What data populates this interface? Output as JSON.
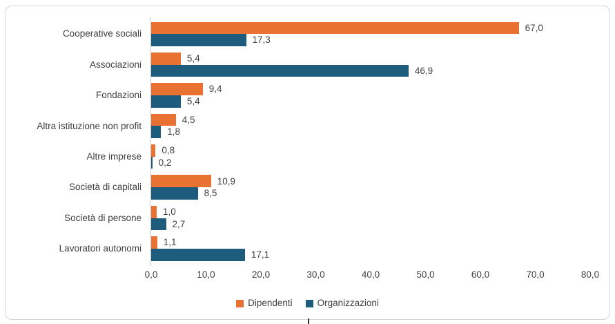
{
  "chart_data": {
    "type": "bar",
    "orientation": "horizontal",
    "title": "",
    "categories": [
      "Cooperative sociali",
      "Associazioni",
      "Fondazioni",
      "Altra istituzione non profit",
      "Altre imprese",
      "Società di capitali",
      "Società di persone",
      "Lavoratori autonomi"
    ],
    "series": [
      {
        "name": "Dipendenti",
        "color": "#E97132",
        "values": [
          67.0,
          5.4,
          9.4,
          4.5,
          0.8,
          10.9,
          1.0,
          1.1
        ],
        "value_labels": [
          "67,0",
          "5,4",
          "9,4",
          "4,5",
          "0,8",
          "10,9",
          "1,0",
          "1,1"
        ]
      },
      {
        "name": "Organizzazioni",
        "color": "#1D5C7D",
        "values": [
          17.3,
          46.9,
          5.4,
          1.8,
          0.2,
          8.5,
          2.7,
          17.1
        ],
        "value_labels": [
          "17,3",
          "46,9",
          "5,4",
          "1,8",
          "0,2",
          "8,5",
          "2,7",
          "17,1"
        ]
      }
    ],
    "xlim": [
      0,
      80
    ],
    "x_tick_labels": [
      "0,0",
      "10,0",
      "20,0",
      "30,0",
      "40,0",
      "50,0",
      "60,0",
      "70,0",
      "80,0"
    ],
    "grid": false,
    "legend_position": "bottom",
    "value_labels_visible": true
  },
  "style_colors": {
    "series_dipendenti": "#E97132",
    "series_organizzazioni": "#1D5C7D",
    "text": "#404040",
    "axis_line": "#C9C9C9",
    "chart_border": "#D6D6D6",
    "background": "#FFFFFF"
  }
}
